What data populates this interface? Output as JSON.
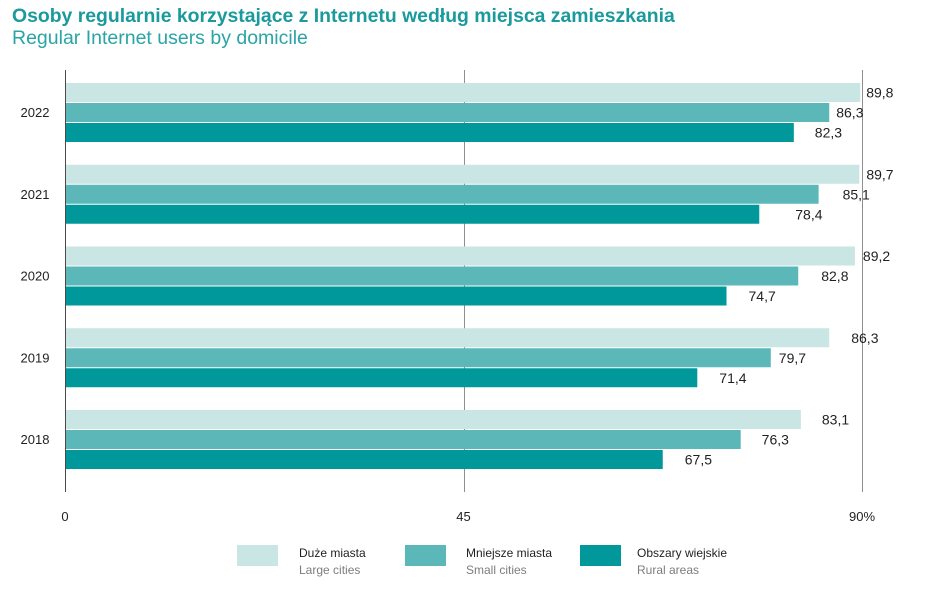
{
  "colors": {
    "title": "#1a9a9c",
    "subtitle": "#2aa4a6"
  },
  "chart_data": {
    "type": "bar",
    "orientation": "horizontal",
    "title": "Osoby regularnie korzystające z Internetu według miejsca zamieszkania",
    "subtitle": "Regular Internet users by domicile",
    "categories": [
      "2022",
      "2021",
      "2020",
      "2019",
      "2018"
    ],
    "series": [
      {
        "name": "Duże miasta",
        "name_en": "Large cities",
        "color": "#c9e6e4",
        "values": [
          89.8,
          89.7,
          89.2,
          86.3,
          83.1
        ],
        "labels": [
          "89,8",
          "89,7",
          "89,2",
          "86,3",
          "83,1"
        ]
      },
      {
        "name": "Mniejsze miasta",
        "name_en": "Small cities",
        "color": "#5cb8b8",
        "values": [
          86.3,
          85.1,
          82.8,
          79.7,
          76.3
        ],
        "labels": [
          "86,3",
          "85,1",
          "82,8",
          "79,7",
          "76,3"
        ]
      },
      {
        "name": "Obszary wiejskie",
        "name_en": "Rural areas",
        "color": "#00989a",
        "values": [
          82.3,
          78.4,
          74.7,
          71.4,
          67.5
        ],
        "labels": [
          "82,3",
          "78,4",
          "74,7",
          "71,4",
          "67,5"
        ]
      }
    ],
    "xlim": [
      0,
      90
    ],
    "x_ticks": [
      {
        "value": 0,
        "label": "0"
      },
      {
        "value": 45,
        "label": "45"
      },
      {
        "value": 90,
        "label": "90%"
      }
    ],
    "grid": true,
    "legend_position": "bottom"
  }
}
